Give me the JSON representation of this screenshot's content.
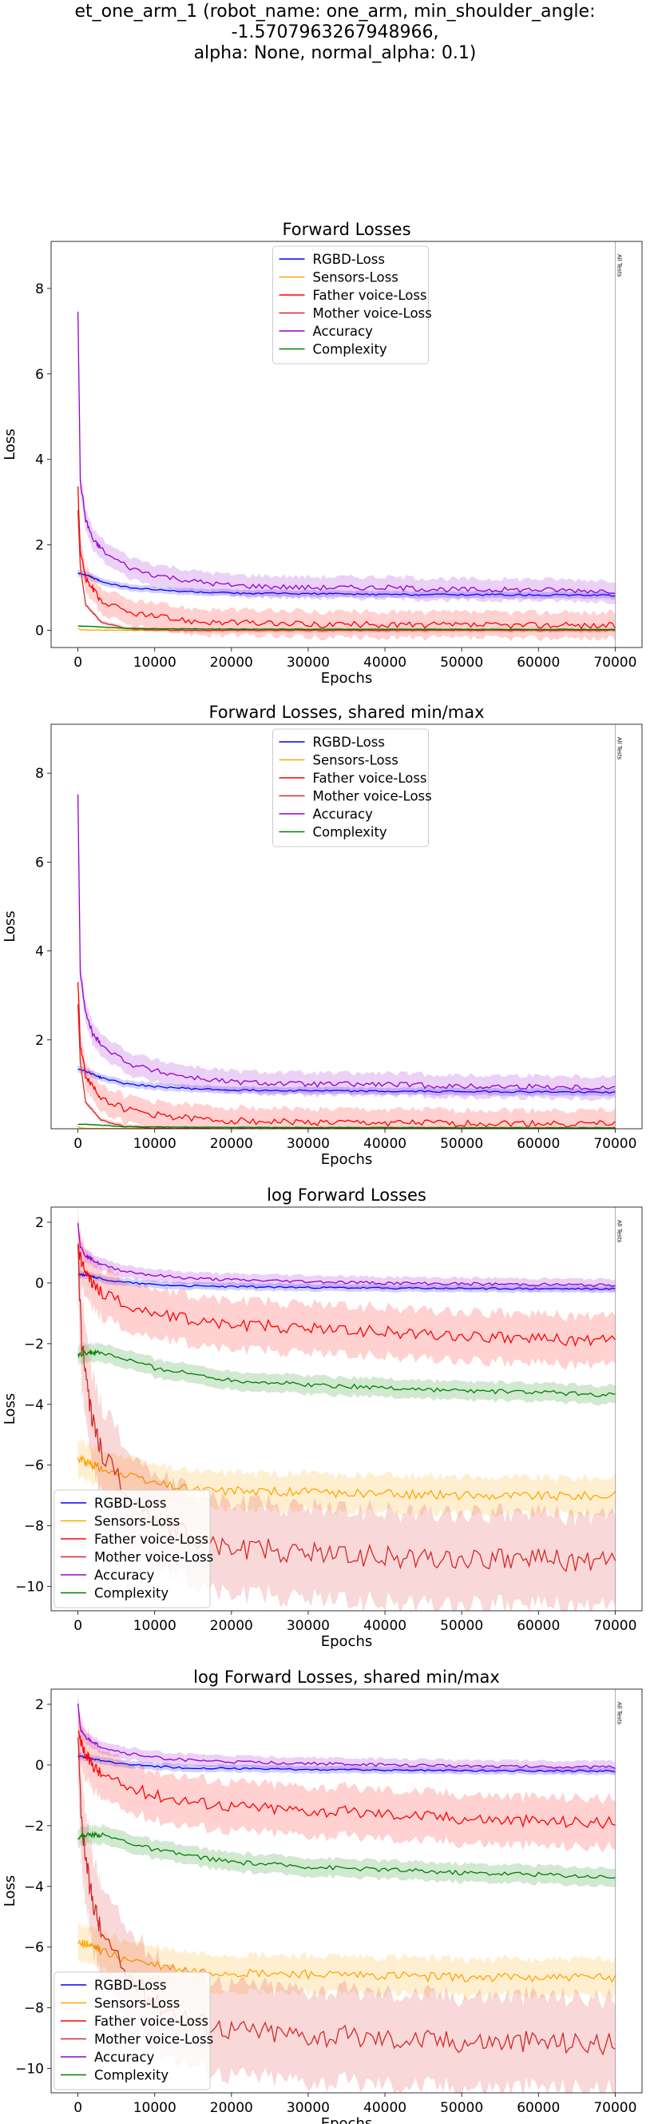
{
  "suptitle": {
    "line1": "et_one_arm_1 (robot_name: one_arm, min_shoulder_angle: -1.5707963267948966,",
    "line2": "alpha: None, normal_alpha: 0.1)"
  },
  "colors": {
    "RGBD-Loss": "#0000ff",
    "Sensors-Loss": "#ffa500",
    "Father voice-Loss": "#ff0000",
    "Mother voice-Loss": "#d62728",
    "Accuracy": "#9400d3",
    "Complexity": "#008000"
  },
  "chart_data": [
    {
      "type": "line",
      "title": "Forward Losses",
      "xlabel": "Epochs",
      "ylabel": "Loss",
      "xlim": [
        -3500,
        73500
      ],
      "ylim": [
        -0.4,
        9.1
      ],
      "xticks": [
        0,
        10000,
        20000,
        30000,
        40000,
        50000,
        60000,
        70000
      ],
      "yticks": [
        0,
        2,
        4,
        6,
        8
      ],
      "vline": {
        "x": 70000,
        "label": "All Tests"
      },
      "legend": "upper-center",
      "series": [
        {
          "name": "RGBD-Loss",
          "x": [
            0,
            1000,
            3000,
            6000,
            10000,
            15000,
            20000,
            30000,
            40000,
            50000,
            60000,
            70000
          ],
          "y": [
            1.35,
            1.3,
            1.15,
            1.02,
            0.95,
            0.9,
            0.87,
            0.86,
            0.84,
            0.84,
            0.83,
            0.82
          ],
          "band": 0.08
        },
        {
          "name": "Sensors-Loss",
          "x": [
            0,
            300,
            1000,
            5000,
            10000,
            20000,
            40000,
            70000
          ],
          "y": [
            0.05,
            0.02,
            0.01,
            0.005,
            0.003,
            0.002,
            0.002,
            0.002
          ],
          "band": 0.01
        },
        {
          "name": "Father voice-Loss",
          "x": [
            0,
            300,
            1000,
            3000,
            6000,
            10000,
            15000,
            20000,
            30000,
            40000,
            50000,
            60000,
            70000
          ],
          "y": [
            3.3,
            1.9,
            1.2,
            0.7,
            0.45,
            0.32,
            0.22,
            0.18,
            0.14,
            0.13,
            0.12,
            0.12,
            0.11
          ],
          "band": 0.3
        },
        {
          "name": "Mother voice-Loss",
          "x": [
            0,
            300,
            1000,
            3000,
            6000,
            10000,
            15000,
            20000,
            30000,
            40000,
            50000,
            60000,
            70000
          ],
          "y": [
            2.8,
            1.5,
            0.6,
            0.2,
            0.05,
            0.01,
            0.005,
            0.003,
            0.002,
            0.002,
            0.002,
            0.002,
            0.002
          ],
          "band": 0.05
        },
        {
          "name": "Accuracy",
          "x": [
            0,
            300,
            1000,
            2000,
            4000,
            7000,
            10000,
            15000,
            20000,
            30000,
            40000,
            50000,
            60000,
            70000
          ],
          "y": [
            7.5,
            3.5,
            2.6,
            2.1,
            1.75,
            1.45,
            1.3,
            1.15,
            1.05,
            1.0,
            1.0,
            0.95,
            0.95,
            0.92
          ],
          "band": 0.25
        },
        {
          "name": "Complexity",
          "x": [
            0,
            1000,
            3000,
            6000,
            10000,
            20000,
            40000,
            70000
          ],
          "y": [
            0.1,
            0.1,
            0.08,
            0.05,
            0.04,
            0.03,
            0.025,
            0.02
          ],
          "band": 0.02
        }
      ]
    },
    {
      "type": "line",
      "title": "Forward Losses, shared min/max",
      "xlabel": "Epochs",
      "ylabel": "Loss",
      "xlim": [
        -3500,
        73500
      ],
      "ylim": [
        0,
        9.1
      ],
      "xticks": [
        0,
        10000,
        20000,
        30000,
        40000,
        50000,
        60000,
        70000
      ],
      "yticks": [
        2,
        4,
        6,
        8
      ],
      "vline": {
        "x": 70000,
        "label": "All Tests"
      },
      "legend": "upper-center",
      "series": [
        {
          "name": "RGBD-Loss",
          "x": [
            0,
            1000,
            3000,
            6000,
            10000,
            15000,
            20000,
            30000,
            40000,
            50000,
            60000,
            70000
          ],
          "y": [
            1.35,
            1.3,
            1.15,
            1.02,
            0.95,
            0.9,
            0.87,
            0.86,
            0.84,
            0.84,
            0.83,
            0.82
          ],
          "band": 0.08
        },
        {
          "name": "Sensors-Loss",
          "x": [
            0,
            300,
            1000,
            5000,
            10000,
            20000,
            40000,
            70000
          ],
          "y": [
            0.05,
            0.02,
            0.01,
            0.005,
            0.003,
            0.002,
            0.002,
            0.002
          ],
          "band": 0.01
        },
        {
          "name": "Father voice-Loss",
          "x": [
            0,
            300,
            1000,
            3000,
            6000,
            10000,
            15000,
            20000,
            30000,
            40000,
            50000,
            60000,
            70000
          ],
          "y": [
            3.3,
            1.9,
            1.2,
            0.7,
            0.45,
            0.32,
            0.22,
            0.18,
            0.14,
            0.13,
            0.12,
            0.12,
            0.11
          ],
          "band": 0.3
        },
        {
          "name": "Mother voice-Loss",
          "x": [
            0,
            300,
            1000,
            3000,
            6000,
            10000,
            15000,
            20000,
            30000,
            40000,
            50000,
            60000,
            70000
          ],
          "y": [
            2.8,
            1.5,
            0.6,
            0.2,
            0.05,
            0.01,
            0.005,
            0.003,
            0.002,
            0.002,
            0.002,
            0.002,
            0.002
          ],
          "band": 0.05
        },
        {
          "name": "Accuracy",
          "x": [
            0,
            300,
            1000,
            2000,
            4000,
            7000,
            10000,
            15000,
            20000,
            30000,
            40000,
            50000,
            60000,
            70000
          ],
          "y": [
            7.5,
            3.5,
            2.6,
            2.1,
            1.75,
            1.45,
            1.3,
            1.15,
            1.05,
            1.0,
            1.0,
            0.95,
            0.95,
            0.92
          ],
          "band": 0.25
        },
        {
          "name": "Complexity",
          "x": [
            0,
            1000,
            3000,
            6000,
            10000,
            20000,
            40000,
            70000
          ],
          "y": [
            0.1,
            0.1,
            0.08,
            0.05,
            0.04,
            0.03,
            0.025,
            0.02
          ],
          "band": 0.02
        }
      ]
    },
    {
      "type": "line",
      "title": "log Forward Losses",
      "xlabel": "Epochs",
      "ylabel": "Loss",
      "xlim": [
        -3500,
        73500
      ],
      "ylim": [
        -10.8,
        2.5
      ],
      "xticks": [
        0,
        10000,
        20000,
        30000,
        40000,
        50000,
        60000,
        70000
      ],
      "yticks": [
        -10,
        -8,
        -6,
        -4,
        -2,
        0,
        2
      ],
      "vline": {
        "x": 70000,
        "label": "All Tests"
      },
      "legend": "lower-left",
      "series": [
        {
          "name": "RGBD-Loss",
          "x": [
            0,
            2000,
            5000,
            10000,
            15000,
            20000,
            30000,
            40000,
            50000,
            60000,
            70000
          ],
          "y": [
            0.3,
            0.2,
            0.05,
            -0.05,
            -0.1,
            -0.12,
            -0.15,
            -0.17,
            -0.18,
            -0.19,
            -0.2
          ],
          "band": 0.12
        },
        {
          "name": "Sensors-Loss",
          "x": [
            0,
            2000,
            5000,
            10000,
            15000,
            20000,
            30000,
            40000,
            50000,
            60000,
            70000
          ],
          "y": [
            -5.8,
            -6.0,
            -6.3,
            -6.6,
            -6.8,
            -6.85,
            -6.9,
            -6.95,
            -7.0,
            -7.0,
            -7.0
          ],
          "band": 0.6
        },
        {
          "name": "Father voice-Loss",
          "x": [
            0,
            1000,
            3000,
            6000,
            10000,
            15000,
            20000,
            30000,
            40000,
            50000,
            60000,
            70000
          ],
          "y": [
            1.1,
            0.3,
            -0.3,
            -0.7,
            -1.0,
            -1.2,
            -1.35,
            -1.5,
            -1.6,
            -1.75,
            -1.85,
            -1.9
          ],
          "band": 0.8
        },
        {
          "name": "Mother voice-Loss",
          "x": [
            0,
            500,
            1500,
            3000,
            6000,
            10000,
            15000,
            20000,
            30000,
            40000,
            50000,
            60000,
            70000
          ],
          "y": [
            0.9,
            -2.0,
            -4.0,
            -5.5,
            -6.8,
            -7.8,
            -8.4,
            -8.7,
            -8.9,
            -9.0,
            -9.1,
            -9.1,
            -9.2
          ],
          "band": 1.5
        },
        {
          "name": "Accuracy",
          "x": [
            0,
            300,
            1000,
            3000,
            6000,
            10000,
            15000,
            20000,
            30000,
            40000,
            50000,
            60000,
            70000
          ],
          "y": [
            2.0,
            1.2,
            0.9,
            0.6,
            0.4,
            0.25,
            0.15,
            0.1,
            0.05,
            0.0,
            -0.03,
            -0.05,
            -0.08
          ],
          "band": 0.2
        },
        {
          "name": "Complexity",
          "x": [
            0,
            1000,
            3000,
            6000,
            10000,
            15000,
            20000,
            30000,
            40000,
            50000,
            60000,
            70000
          ],
          "y": [
            -2.4,
            -2.3,
            -2.3,
            -2.5,
            -2.8,
            -3.0,
            -3.2,
            -3.35,
            -3.45,
            -3.55,
            -3.6,
            -3.7
          ],
          "band": 0.3
        }
      ]
    },
    {
      "type": "line",
      "title": "log Forward Losses, shared min/max",
      "xlabel": "Epochs",
      "ylabel": "Loss",
      "xlim": [
        -3500,
        73500
      ],
      "ylim": [
        -10.8,
        2.5
      ],
      "xticks": [
        0,
        10000,
        20000,
        30000,
        40000,
        50000,
        60000,
        70000
      ],
      "yticks": [
        -10,
        -8,
        -6,
        -4,
        -2,
        0,
        2
      ],
      "vline": {
        "x": 70000,
        "label": "All Tests"
      },
      "legend": "lower-left",
      "series": [
        {
          "name": "RGBD-Loss",
          "x": [
            0,
            2000,
            5000,
            10000,
            15000,
            20000,
            30000,
            40000,
            50000,
            60000,
            70000
          ],
          "y": [
            0.3,
            0.2,
            0.05,
            -0.05,
            -0.1,
            -0.12,
            -0.15,
            -0.17,
            -0.18,
            -0.19,
            -0.2
          ],
          "band": 0.12
        },
        {
          "name": "Sensors-Loss",
          "x": [
            0,
            2000,
            5000,
            10000,
            15000,
            20000,
            30000,
            40000,
            50000,
            60000,
            70000
          ],
          "y": [
            -5.8,
            -6.0,
            -6.3,
            -6.6,
            -6.8,
            -6.85,
            -6.9,
            -6.95,
            -7.0,
            -7.0,
            -7.0
          ],
          "band": 0.6
        },
        {
          "name": "Father voice-Loss",
          "x": [
            0,
            1000,
            3000,
            6000,
            10000,
            15000,
            20000,
            30000,
            40000,
            50000,
            60000,
            70000
          ],
          "y": [
            1.1,
            0.3,
            -0.3,
            -0.7,
            -1.0,
            -1.2,
            -1.35,
            -1.5,
            -1.6,
            -1.75,
            -1.85,
            -1.9
          ],
          "band": 0.8
        },
        {
          "name": "Mother voice-Loss",
          "x": [
            0,
            500,
            1500,
            3000,
            6000,
            10000,
            15000,
            20000,
            30000,
            40000,
            50000,
            60000,
            70000
          ],
          "y": [
            0.9,
            -2.0,
            -4.0,
            -5.5,
            -6.8,
            -7.8,
            -8.4,
            -8.7,
            -8.9,
            -9.0,
            -9.1,
            -9.1,
            -9.2
          ],
          "band": 1.5
        },
        {
          "name": "Accuracy",
          "x": [
            0,
            300,
            1000,
            3000,
            6000,
            10000,
            15000,
            20000,
            30000,
            40000,
            50000,
            60000,
            70000
          ],
          "y": [
            2.0,
            1.2,
            0.9,
            0.6,
            0.4,
            0.25,
            0.15,
            0.1,
            0.05,
            0.0,
            -0.03,
            -0.05,
            -0.08
          ],
          "band": 0.2
        },
        {
          "name": "Complexity",
          "x": [
            0,
            1000,
            3000,
            6000,
            10000,
            15000,
            20000,
            30000,
            40000,
            50000,
            60000,
            70000
          ],
          "y": [
            -2.4,
            -2.3,
            -2.3,
            -2.5,
            -2.8,
            -3.0,
            -3.2,
            -3.35,
            -3.45,
            -3.55,
            -3.6,
            -3.7
          ],
          "band": 0.3
        }
      ]
    }
  ]
}
